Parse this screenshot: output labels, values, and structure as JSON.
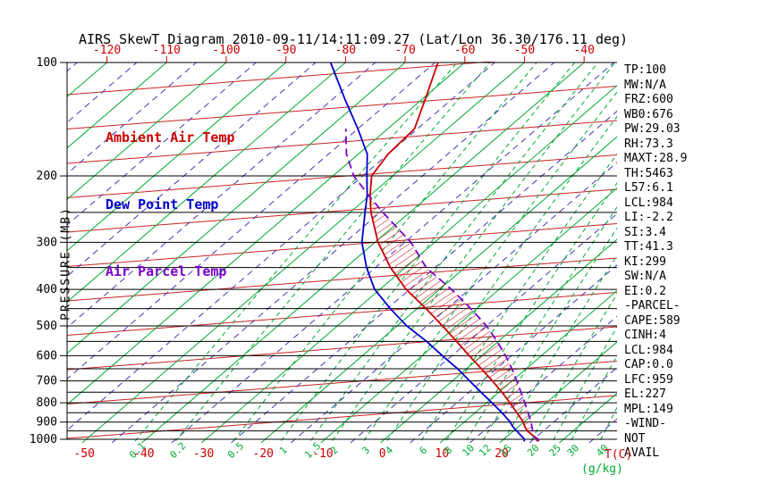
{
  "title": "AIRS SkewT Diagram 2010-09-11/14:11:09.27 (Lat/Lon 36.30/176.11 deg)",
  "legend": [
    {
      "label": "Ambient Air Temp",
      "color": "#cc0000"
    },
    {
      "label": "Dew Point Temp",
      "color": "#0000cc"
    },
    {
      "label": "Air Parcel Temp",
      "color": "#7a00cc"
    }
  ],
  "stats": [
    "TP:100",
    "MW:N/A",
    "FRZ:600",
    "WB0:676",
    "PW:29.03",
    "RH:73.3",
    "MAXT:28.9",
    "TH:5463",
    "L57:6.1",
    "LCL:984",
    "LI:-2.2",
    "SI:3.4",
    "TT:41.3",
    "KI:299",
    "SW:N/A",
    "EI:0.2",
    "-PARCEL-",
    "CAPE:589",
    "CINH:4",
    "LCL:984",
    "CAP:0.0",
    "LFC:959",
    "EL:227",
    "MPL:149",
    "-WIND-",
    "NOT",
    "AVAIL"
  ],
  "chart_data": {
    "type": "line",
    "title": "AIRS SkewT Diagram 2010-09-11/14:11:09.27 (Lat/Lon 36.30/176.11 deg)",
    "x_axis": {
      "unit_label": "T(C)",
      "tick_color": "#cc0000",
      "top_ticks": [
        -120,
        -110,
        -100,
        -90,
        -80,
        -70,
        -60,
        -50,
        -40
      ],
      "bottom_ticks": [
        -50,
        -40,
        -30,
        -20,
        -10,
        0,
        10,
        20
      ]
    },
    "y_axis": {
      "label": "PRESSURE (MB)",
      "scale": "log",
      "ticks": [
        100,
        200,
        300,
        400,
        500,
        600,
        700,
        800,
        900,
        1000
      ],
      "grid_lines": [
        100,
        200,
        250,
        300,
        350,
        400,
        450,
        500,
        550,
        600,
        650,
        700,
        750,
        800,
        850,
        900,
        950,
        1000
      ]
    },
    "mixing_ratio": {
      "unit_label": "(g/kg)",
      "color": "#00aa33",
      "values": [
        0.1,
        0.2,
        0.5,
        1,
        1.5,
        2,
        3,
        4,
        6,
        8,
        10,
        12,
        15,
        20,
        25,
        30,
        40
      ]
    },
    "grid": {
      "isotherm_step_c": 10,
      "isotherm_color": "#00aa33",
      "dashed_isotherm_offset_c": 5,
      "dashed_isotherm_color": "#4038b8",
      "height_guide_color": "#cc2222",
      "pressure_line_color": "#000000"
    },
    "series": [
      {
        "name": "ambient",
        "label": "Ambient Air Temp",
        "color": "#cc0000",
        "style": "solid",
        "points": [
          [
            1013,
            26.0
          ],
          [
            1000,
            25.5
          ],
          [
            975,
            24.0
          ],
          [
            950,
            22.3
          ],
          [
            925,
            21.0
          ],
          [
            900,
            19.9
          ],
          [
            850,
            17.0
          ],
          [
            800,
            13.9
          ],
          [
            750,
            10.5
          ],
          [
            700,
            6.7
          ],
          [
            650,
            2.5
          ],
          [
            600,
            -2.1
          ],
          [
            550,
            -7.0
          ],
          [
            500,
            -12.4
          ],
          [
            450,
            -18.5
          ],
          [
            400,
            -25.6
          ],
          [
            350,
            -32.5
          ],
          [
            300,
            -39.5
          ],
          [
            250,
            -46.5
          ],
          [
            225,
            -50.0
          ],
          [
            200,
            -53.5
          ],
          [
            175,
            -55.0
          ],
          [
            150,
            -55.5
          ],
          [
            125,
            -59.5
          ],
          [
            100,
            -64.5
          ]
        ]
      },
      {
        "name": "dewpoint",
        "label": "Dew Point Temp",
        "color": "#0000cc",
        "style": "solid",
        "points": [
          [
            1013,
            23.8
          ],
          [
            1000,
            23.5
          ],
          [
            975,
            22.0
          ],
          [
            950,
            20.5
          ],
          [
            925,
            19.0
          ],
          [
            900,
            17.7
          ],
          [
            850,
            14.5
          ],
          [
            800,
            10.9
          ],
          [
            750,
            7.0
          ],
          [
            700,
            2.9
          ],
          [
            650,
            -1.5
          ],
          [
            600,
            -6.6
          ],
          [
            550,
            -12.0
          ],
          [
            500,
            -18.4
          ],
          [
            450,
            -24.5
          ],
          [
            400,
            -30.9
          ],
          [
            350,
            -36.5
          ],
          [
            300,
            -42.2
          ],
          [
            250,
            -47.5
          ],
          [
            225,
            -50.5
          ],
          [
            200,
            -54.3
          ],
          [
            175,
            -58.5
          ],
          [
            150,
            -65.0
          ],
          [
            125,
            -73.0
          ],
          [
            100,
            -82.5
          ]
        ]
      },
      {
        "name": "parcel",
        "label": "Air Parcel Temp",
        "color": "#7a00cc",
        "style": "dashed",
        "points": [
          [
            1013,
            26.2
          ],
          [
            1000,
            25.8
          ],
          [
            984,
            24.6
          ],
          [
            950,
            23.2
          ],
          [
            900,
            21.2
          ],
          [
            850,
            18.9
          ],
          [
            800,
            16.4
          ],
          [
            750,
            13.7
          ],
          [
            700,
            10.8
          ],
          [
            650,
            7.6
          ],
          [
            600,
            4.0
          ],
          [
            550,
            -0.2
          ],
          [
            500,
            -5.0
          ],
          [
            450,
            -11.0
          ],
          [
            400,
            -18.0
          ],
          [
            350,
            -26.5
          ],
          [
            300,
            -34.0
          ],
          [
            250,
            -44.5
          ],
          [
            227,
            -49.8
          ],
          [
            200,
            -56.5
          ],
          [
            175,
            -62.0
          ],
          [
            150,
            -67.0
          ]
        ]
      }
    ],
    "hatch_region": {
      "name": "CAPE",
      "between": [
        "ambient",
        "parcel"
      ],
      "p_bottom": 959,
      "p_top": 227,
      "color": "#cc0000"
    }
  }
}
